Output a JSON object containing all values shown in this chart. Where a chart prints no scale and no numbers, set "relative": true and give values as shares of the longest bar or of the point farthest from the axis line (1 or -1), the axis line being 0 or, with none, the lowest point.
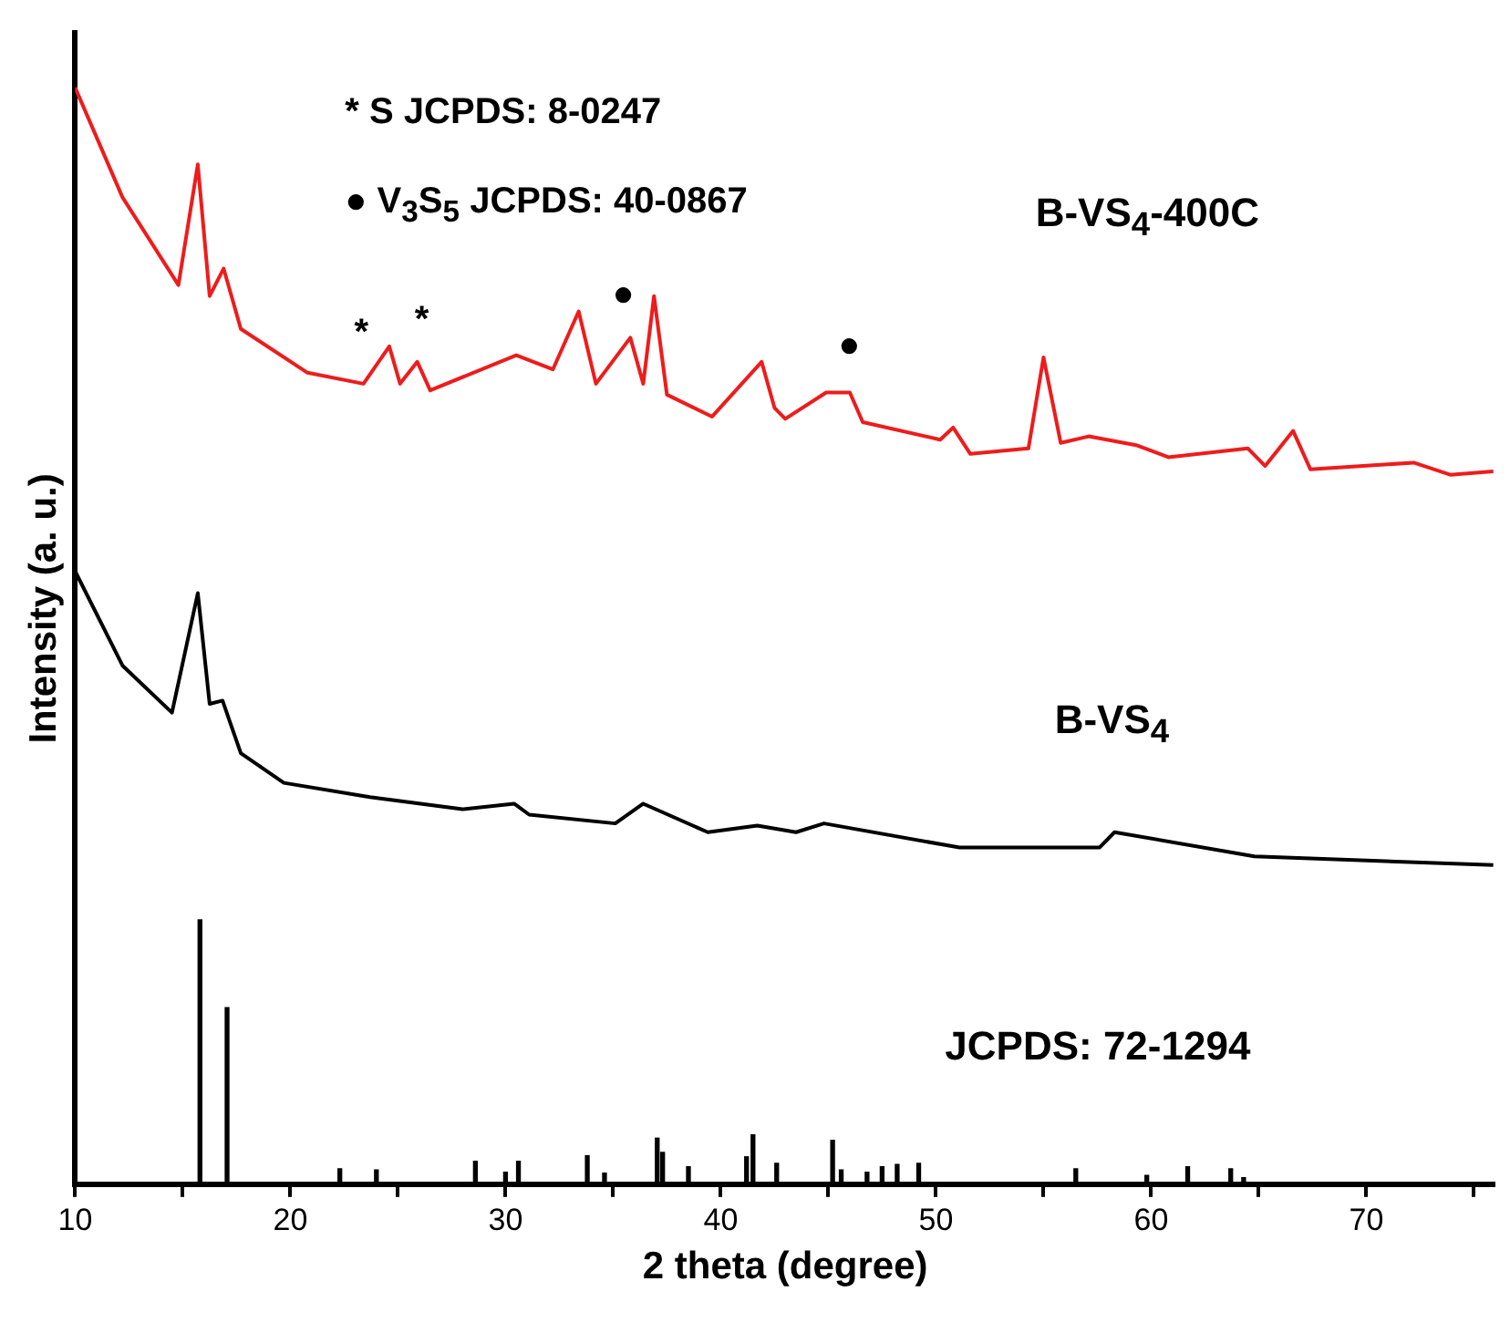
{
  "chart_data": {
    "type": "line",
    "relative": true,
    "xlabel": "2 theta (degree)",
    "ylabel": "Intensity (a. u.)",
    "xlim": [
      10,
      76
    ],
    "xticks": [
      10,
      {
        "value": 15,
        "label": null
      },
      20,
      {
        "value": 25,
        "label": null
      },
      30,
      {
        "value": 35,
        "label": null
      },
      40,
      {
        "value": 45,
        "label": null
      },
      50,
      {
        "value": 55,
        "label": null
      },
      60,
      {
        "value": 65,
        "label": null
      },
      70,
      {
        "value": 75,
        "label": null
      }
    ],
    "grid": false,
    "legend": false,
    "marker": "none",
    "series": [
      {
        "name": "B-VS$_{4}$-400C",
        "color": "#ee1c1c",
        "x": [
          10,
          12.2,
          14.8,
          15.7,
          16.25,
          16.9,
          17.7,
          20.8,
          23.4,
          24.6,
          25.1,
          25.9,
          26.5,
          30.5,
          32.2,
          33.4,
          34.2,
          35.8,
          36.4,
          36.9,
          37.5,
          39.6,
          41.9,
          42.5,
          43,
          44.9,
          46,
          46.6,
          50.2,
          50.8,
          51.6,
          54.3,
          55,
          55.8,
          57.1,
          59.3,
          60.8,
          64.5,
          65.3,
          66.6,
          67.4,
          72.2,
          73.9,
          75.9
        ],
        "values": [
          1,
          0.9,
          0.82,
          0.93,
          0.81,
          0.835,
          0.78,
          0.74,
          0.73,
          0.764,
          0.73,
          0.75,
          0.724,
          0.756,
          0.743,
          0.796,
          0.73,
          0.772,
          0.73,
          0.81,
          0.72,
          0.7,
          0.75,
          0.708,
          0.698,
          0.722,
          0.722,
          0.695,
          0.679,
          0.69,
          0.666,
          0.671,
          0.754,
          0.676,
          0.682,
          0.674,
          0.663,
          0.671,
          0.655,
          0.687,
          0.652,
          0.658,
          0.647,
          0.65
        ]
      },
      {
        "name": "B-VS$_{4}$",
        "color": "#000000",
        "x": [
          10,
          12.2,
          14.5,
          15.7,
          16.25,
          16.85,
          17.7,
          19.7,
          23.7,
          28,
          30.4,
          31.1,
          35.1,
          36.4,
          39.4,
          41.7,
          43.5,
          44.8,
          51.1,
          57.6,
          58.3,
          64.8,
          75.9
        ],
        "values": [
          0.559,
          0.473,
          0.43,
          0.539,
          0.438,
          0.441,
          0.393,
          0.366,
          0.353,
          0.342,
          0.347,
          0.337,
          0.329,
          0.347,
          0.321,
          0.327,
          0.321,
          0.329,
          0.307,
          0.307,
          0.321,
          0.299,
          0.291
        ]
      },
      {
        "name": "JCPDS: 72-1294",
        "type": "bar",
        "color": "#000000",
        "x": [
          15.8,
          17.06,
          22.3,
          24,
          28.6,
          30,
          30.6,
          33.8,
          34.6,
          37.05,
          37.3,
          38.5,
          41.2,
          41.5,
          42.6,
          45.2,
          45.6,
          46.8,
          47.5,
          48.2,
          49.2,
          56.5,
          59.8,
          61.7,
          63.7,
          64.3
        ],
        "values": [
          0.241,
          0.161,
          0.014,
          0.013,
          0.021,
          0.011,
          0.021,
          0.026,
          0.01,
          0.042,
          0.029,
          0.016,
          0.025,
          0.045,
          0.019,
          0.04,
          0.013,
          0.011,
          0.016,
          0.018,
          0.019,
          0.014,
          0.008,
          0.016,
          0.014,
          0.006
        ]
      }
    ],
    "annotations": [
      "* S JCPDS: 8-0247",
      "● V$_{3}$S$_{5}$ JCPDS: 40-0867",
      "*",
      "*",
      "●",
      "●"
    ]
  }
}
